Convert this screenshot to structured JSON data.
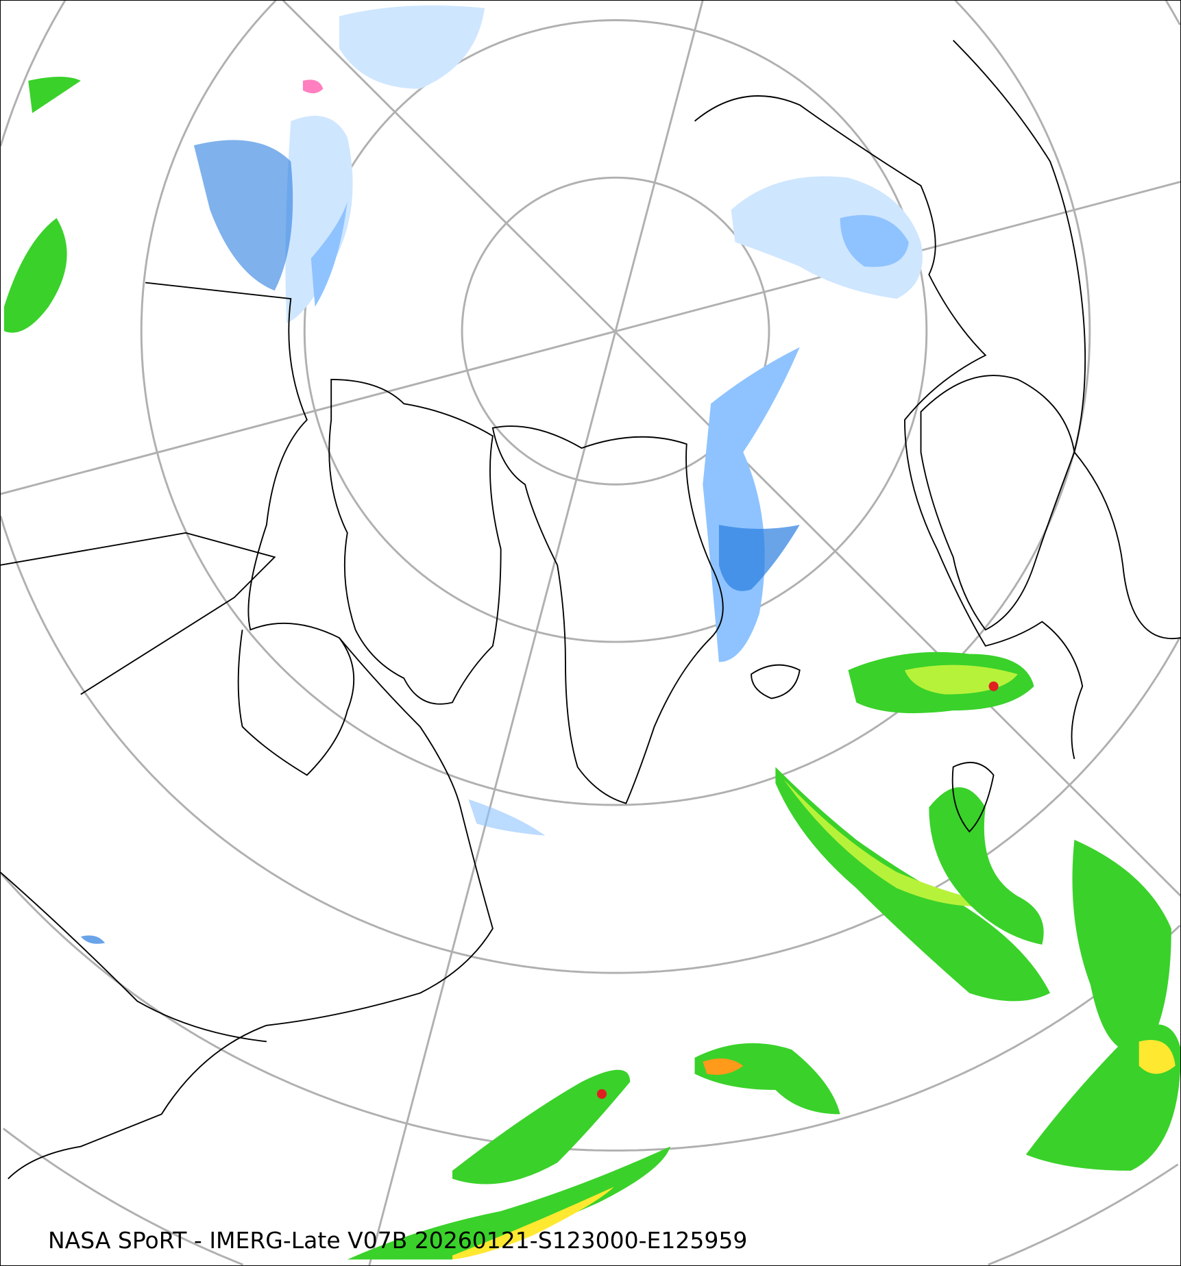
{
  "caption": "NASA SPoRT - IMERG-Late V07B 20260121-S123000-E125959",
  "colors": {
    "graticule": "#b0b0b0",
    "coastline": "#000000",
    "snow_light": "#cfe6ff",
    "snow_medium": "#8ec3ff",
    "snow_heavy": "#2a7de0",
    "snow_very_heavy": "#0b4fa8",
    "mixed": "#ff7fc0",
    "rain_light_dark": "#0b7d12",
    "rain_light": "#3ad12a",
    "rain_moderate": "#b7f23a",
    "rain_heavy": "#ffe830",
    "rain_very_heavy": "#ff9a1a",
    "rain_extreme": "#e02020"
  }
}
